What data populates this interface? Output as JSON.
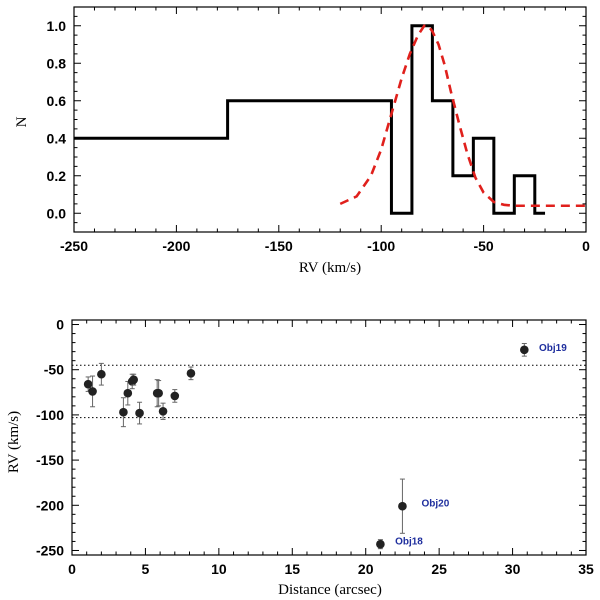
{
  "colors": {
    "histogram": "#000000",
    "fit": "#e0201c",
    "annotation": "#1f2f9e",
    "points": "#222222",
    "errorbars": "#666666"
  },
  "chart_data": [
    {
      "type": "histogram+line",
      "xlabel": "RV (km/s)",
      "ylabel": "N",
      "xlim": [
        -250,
        0
      ],
      "ylim": [
        -0.1,
        1.1
      ],
      "xticks": [
        -250,
        -200,
        -150,
        -100,
        -50,
        0
      ],
      "xtick_labels": [
        "-250",
        "-200",
        "-150",
        "-100",
        "-50",
        "0"
      ],
      "yticks": [
        0.0,
        0.2,
        0.4,
        0.6,
        0.8,
        1.0
      ],
      "ytick_labels": [
        "0.0",
        "0.2",
        "0.4",
        "0.6",
        "0.8",
        "1.0"
      ],
      "histogram_bins": [
        {
          "x0": -250,
          "x1": -175,
          "y": 0.4
        },
        {
          "x0": -175,
          "x1": -95,
          "y": 0.6
        },
        {
          "x0": -95,
          "x1": -85,
          "y": 0.0
        },
        {
          "x0": -85,
          "x1": -75,
          "y": 1.0
        },
        {
          "x0": -75,
          "x1": -65,
          "y": 0.6
        },
        {
          "x0": -65,
          "x1": -55,
          "y": 0.2
        },
        {
          "x0": -55,
          "x1": -45,
          "y": 0.4
        },
        {
          "x0": -45,
          "x1": -35,
          "y": 0.0
        },
        {
          "x0": -35,
          "x1": -25,
          "y": 0.2
        },
        {
          "x0": -25,
          "x1": -20,
          "y": 0.0
        }
      ],
      "gaussian_fit": {
        "x": [
          -120,
          -112,
          -105,
          -100,
          -95,
          -90,
          -86,
          -82,
          -79,
          -77,
          -75,
          -72,
          -69,
          -66,
          -62,
          -58,
          -54,
          -50,
          -45,
          -40,
          -35,
          -30,
          -20,
          -10,
          0
        ],
        "y": [
          0.05,
          0.09,
          0.2,
          0.34,
          0.53,
          0.72,
          0.85,
          0.95,
          1.0,
          1.0,
          0.97,
          0.9,
          0.79,
          0.65,
          0.48,
          0.32,
          0.19,
          0.11,
          0.06,
          0.045,
          0.04,
          0.04,
          0.04,
          0.04,
          0.04
        ]
      }
    },
    {
      "type": "scatter",
      "xlabel": "Distance (arcsec)",
      "ylabel": "RV (km/s)",
      "xlim": [
        0,
        35
      ],
      "ylim": [
        -255,
        5
      ],
      "xticks": [
        0,
        5,
        10,
        15,
        20,
        25,
        30,
        35
      ],
      "xtick_labels": [
        "0",
        "5",
        "10",
        "15",
        "20",
        "25",
        "30",
        "35"
      ],
      "yticks": [
        0,
        -50,
        -100,
        -150,
        -200,
        -250
      ],
      "ytick_labels": [
        "0",
        "-50",
        "-100",
        "-150",
        "-200",
        "-250"
      ],
      "reference_lines": [
        -45,
        -103
      ],
      "points": [
        {
          "x": 1.1,
          "y": -66,
          "err": 8
        },
        {
          "x": 1.4,
          "y": -74,
          "err": 17
        },
        {
          "x": 2.0,
          "y": -55,
          "err": 12
        },
        {
          "x": 3.5,
          "y": -97,
          "err": 16
        },
        {
          "x": 3.8,
          "y": -76,
          "err": 13
        },
        {
          "x": 4.1,
          "y": -63,
          "err": 8
        },
        {
          "x": 4.2,
          "y": -61,
          "err": 6
        },
        {
          "x": 4.6,
          "y": -98,
          "err": 12
        },
        {
          "x": 5.8,
          "y": -76,
          "err": 15
        },
        {
          "x": 5.9,
          "y": -76,
          "err": 14
        },
        {
          "x": 6.2,
          "y": -96,
          "err": 9
        },
        {
          "x": 7.0,
          "y": -79,
          "err": 7
        },
        {
          "x": 8.1,
          "y": -54,
          "err": 7
        },
        {
          "x": 21.0,
          "y": -243,
          "err": 5
        },
        {
          "x": 22.5,
          "y": -201,
          "err": 30
        },
        {
          "x": 30.8,
          "y": -28,
          "err": 7
        }
      ],
      "annotations": [
        {
          "label": "Obj19",
          "x": 31.8,
          "y": -26
        },
        {
          "label": "Obj20",
          "x": 23.8,
          "y": -198
        },
        {
          "label": "Obj18",
          "x": 22.0,
          "y": -240
        }
      ]
    }
  ]
}
